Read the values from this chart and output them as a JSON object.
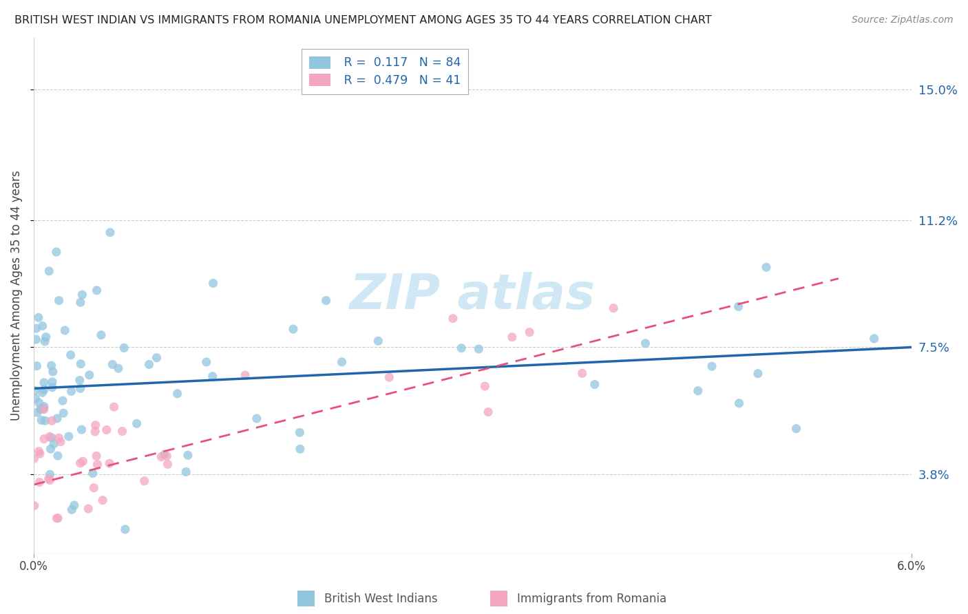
{
  "title": "BRITISH WEST INDIAN VS IMMIGRANTS FROM ROMANIA UNEMPLOYMENT AMONG AGES 35 TO 44 YEARS CORRELATION CHART",
  "source": "Source: ZipAtlas.com",
  "ylabel": "Unemployment Among Ages 35 to 44 years",
  "ytick_labels": [
    "3.8%",
    "7.5%",
    "11.2%",
    "15.0%"
  ],
  "ytick_values": [
    3.8,
    7.5,
    11.2,
    15.0
  ],
  "xlim": [
    0.0,
    6.0
  ],
  "ylim": [
    1.5,
    16.5
  ],
  "legend1_r": "0.117",
  "legend1_n": "84",
  "legend2_r": "0.479",
  "legend2_n": "41",
  "color_blue": "#92c5de",
  "color_pink": "#f4a6c0",
  "trendline_blue": "#2166ac",
  "trendline_pink": "#e8507a",
  "blue_trend_x0": 0.0,
  "blue_trend_y0": 6.3,
  "blue_trend_x1": 6.0,
  "blue_trend_y1": 7.5,
  "pink_trend_x0": 0.0,
  "pink_trend_y0": 3.5,
  "pink_trend_x1": 5.5,
  "pink_trend_y1": 9.5
}
